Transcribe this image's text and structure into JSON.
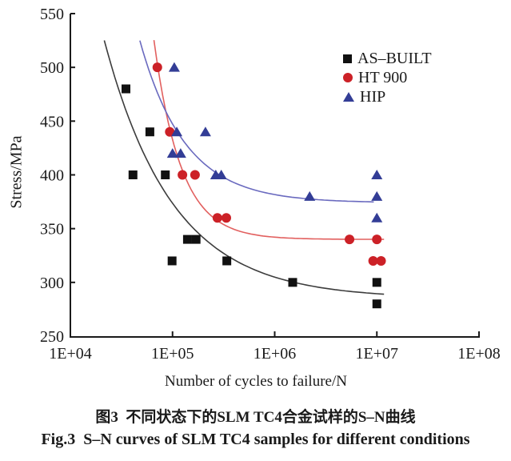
{
  "figure": {
    "caption_zh": "图3  不同状态下的SLM TC4合金试样的S–N曲线",
    "caption_en": "Fig.3  S–N curves of SLM TC4 samples for different conditions"
  },
  "chart_data": {
    "type": "scatter",
    "title": "",
    "xlabel": "Number of cycles to failure/N",
    "ylabel": "Stress/MPa",
    "x_scale": "log",
    "xlim": [
      10000,
      100000000
    ],
    "ylim": [
      250,
      550
    ],
    "grid": false,
    "legend_position": "top-right",
    "x_ticks": [
      "1E+04",
      "1E+05",
      "1E+06",
      "1E+07",
      "1E+08"
    ],
    "y_ticks": [
      250,
      300,
      350,
      400,
      450,
      500,
      550
    ],
    "axis_color": "#1a1a1a",
    "series": [
      {
        "name": "AS–BUILT",
        "marker": "square",
        "color": "#111111",
        "curve_color": "#3c3c3c",
        "points": [
          [
            35000,
            480
          ],
          [
            41000,
            400
          ],
          [
            60000,
            440
          ],
          [
            85000,
            400
          ],
          [
            99000,
            320
          ],
          [
            140000,
            340
          ],
          [
            170000,
            340
          ],
          [
            340000,
            320
          ],
          [
            1500000,
            300
          ],
          [
            10000000,
            300
          ],
          [
            10000000,
            280
          ]
        ],
        "fit": {
          "s_inf": 285,
          "amplitude": 394,
          "decay": 0.648,
          "d_start": 0.332,
          "d_end": 3.07
        }
      },
      {
        "name": "HT 900",
        "marker": "circle",
        "color": "#cc2127",
        "curve_color": "#e2605f",
        "points": [
          [
            71000,
            500
          ],
          [
            94000,
            440
          ],
          [
            125000,
            400
          ],
          [
            166000,
            400
          ],
          [
            275000,
            360
          ],
          [
            336000,
            360
          ],
          [
            5400000,
            340
          ],
          [
            10000000,
            340
          ],
          [
            9200000,
            320
          ],
          [
            11000000,
            320
          ]
        ],
        "fit": {
          "s_inf": 340,
          "amplitude": 4170,
          "decay": 1.653,
          "d_start": 0.818,
          "d_end": 3.07
        }
      },
      {
        "name": "HIP",
        "marker": "triangle",
        "color": "#333d96",
        "curve_color": "#6a6abf",
        "points": [
          [
            104000,
            500
          ],
          [
            110000,
            440
          ],
          [
            210000,
            440
          ],
          [
            100000,
            420
          ],
          [
            120000,
            420
          ],
          [
            265000,
            400
          ],
          [
            300000,
            400
          ],
          [
            2200000,
            380
          ],
          [
            10000000,
            400
          ],
          [
            10000000,
            380
          ],
          [
            10000000,
            360
          ]
        ],
        "fit": {
          "s_inf": 374,
          "amplitude": 700,
          "decay": 0.98,
          "d_start": 0.68,
          "d_end": 2.97
        }
      }
    ]
  }
}
